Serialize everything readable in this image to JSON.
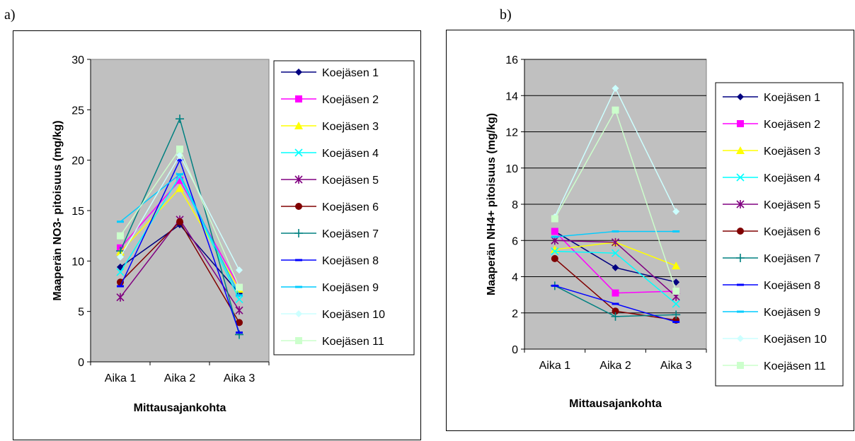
{
  "panel_labels": {
    "a": "a)",
    "b": "b)"
  },
  "colors": {
    "plot_background": "#c0c0c0",
    "series": [
      "#000080",
      "#ff00ff",
      "#ffff00",
      "#00ffff",
      "#800080",
      "#800000",
      "#008080",
      "#0000ff",
      "#00ccff",
      "#ccffff",
      "#ccffcc"
    ]
  },
  "chart_data": [
    {
      "id": "a",
      "type": "line",
      "title": "",
      "xlabel": "Mittausajankohta",
      "ylabel": "Maaperän NO3- pitoisuus (mg/kg)",
      "ylim": [
        0,
        30
      ],
      "yticks": [
        0,
        5,
        10,
        15,
        20,
        25,
        30
      ],
      "grid": false,
      "legend": "right",
      "categories": [
        "Aika 1",
        "Aika 2",
        "Aika 3"
      ],
      "series": [
        {
          "name": "Koejäsen 1",
          "marker": "diamond",
          "values": [
            9.4,
            13.6,
            6.8
          ]
        },
        {
          "name": "Koejäsen 2",
          "marker": "square",
          "values": [
            11.3,
            18.0,
            7.4
          ]
        },
        {
          "name": "Koejäsen 3",
          "marker": "triangle",
          "values": [
            10.9,
            17.2,
            7.2
          ]
        },
        {
          "name": "Koejäsen 4",
          "marker": "x",
          "values": [
            8.9,
            18.4,
            6.2
          ]
        },
        {
          "name": "Koejäsen 5",
          "marker": "asterisk",
          "values": [
            6.4,
            14.1,
            5.1
          ]
        },
        {
          "name": "Koejäsen 6",
          "marker": "circle",
          "values": [
            7.9,
            13.9,
            3.9
          ]
        },
        {
          "name": "Koejäsen 7",
          "marker": "plus",
          "values": [
            11.0,
            24.1,
            2.7
          ]
        },
        {
          "name": "Koejäsen 8",
          "marker": "dash",
          "values": [
            7.5,
            20.0,
            2.9
          ]
        },
        {
          "name": "Koejäsen 9",
          "marker": "dash",
          "values": [
            13.9,
            18.6,
            6.6
          ]
        },
        {
          "name": "Koejäsen 10",
          "marker": "diamond",
          "values": [
            10.4,
            20.5,
            9.1
          ]
        },
        {
          "name": "Koejäsen 11",
          "marker": "square",
          "values": [
            12.5,
            21.1,
            7.4
          ]
        }
      ]
    },
    {
      "id": "b",
      "type": "line",
      "title": "",
      "xlabel": "Mittausajankohta",
      "ylabel": "Maaperän NH4+ pitoisuus (mg/kg)",
      "ylim": [
        0,
        16
      ],
      "yticks": [
        0,
        2,
        4,
        6,
        8,
        10,
        12,
        14,
        16
      ],
      "grid": true,
      "legend": "right",
      "categories": [
        "Aika 1",
        "Aika 2",
        "Aika 3"
      ],
      "series": [
        {
          "name": "Koejäsen 1",
          "marker": "diamond",
          "values": [
            6.5,
            4.5,
            3.7
          ]
        },
        {
          "name": "Koejäsen 2",
          "marker": "square",
          "values": [
            6.5,
            3.1,
            3.2
          ]
        },
        {
          "name": "Koejäsen 3",
          "marker": "triangle",
          "values": [
            5.5,
            5.9,
            4.6
          ]
        },
        {
          "name": "Koejäsen 4",
          "marker": "x",
          "values": [
            5.4,
            5.3,
            2.5
          ]
        },
        {
          "name": "Koejäsen 5",
          "marker": "asterisk",
          "values": [
            6.0,
            5.9,
            2.9
          ]
        },
        {
          "name": "Koejäsen 6",
          "marker": "circle",
          "values": [
            5.0,
            2.1,
            1.6
          ]
        },
        {
          "name": "Koejäsen 7",
          "marker": "plus",
          "values": [
            3.5,
            1.8,
            1.9
          ]
        },
        {
          "name": "Koejäsen 8",
          "marker": "dash",
          "values": [
            3.5,
            2.5,
            1.5
          ]
        },
        {
          "name": "Koejäsen 9",
          "marker": "dash",
          "values": [
            6.2,
            6.5,
            6.5
          ]
        },
        {
          "name": "Koejäsen 10",
          "marker": "diamond",
          "values": [
            7.3,
            14.4,
            7.6
          ]
        },
        {
          "name": "Koejäsen 11",
          "marker": "square",
          "values": [
            7.2,
            13.2,
            3.2
          ]
        }
      ]
    }
  ]
}
